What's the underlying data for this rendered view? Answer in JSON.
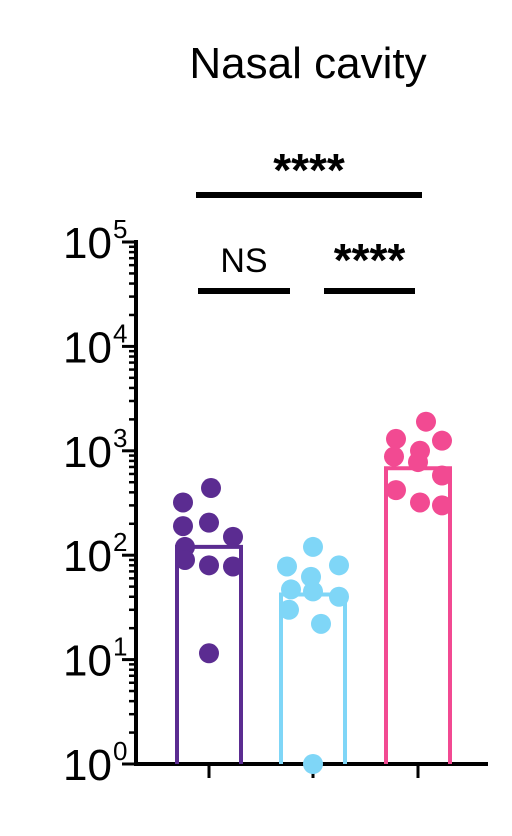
{
  "chart_data": {
    "type": "bar",
    "title": "Nasal cavity",
    "yscale": "log",
    "ylim": [
      1,
      100000
    ],
    "yticks": [
      {
        "value": 1,
        "base": "10",
        "exp": "0"
      },
      {
        "value": 10,
        "base": "10",
        "exp": "1"
      },
      {
        "value": 100,
        "base": "10",
        "exp": "2"
      },
      {
        "value": 1000,
        "base": "10",
        "exp": "3"
      },
      {
        "value": 10000,
        "base": "10",
        "exp": "4"
      },
      {
        "value": 100000,
        "base": "10",
        "exp": "5"
      }
    ],
    "xlabel": "",
    "ylabel": "",
    "categories": [
      "",
      "",
      ""
    ],
    "series": [
      {
        "color": "#5B2C91",
        "bar_value": 120,
        "points": [
          320,
          440,
          190,
          205,
          120,
          150,
          90,
          80,
          78,
          11.5
        ]
      },
      {
        "color": "#7FD6F7",
        "bar_value": 42,
        "points": [
          120,
          80,
          62,
          78,
          47,
          45,
          40,
          30,
          22,
          1
        ]
      },
      {
        "color": "#F24A92",
        "bar_value": 680,
        "points": [
          1900,
          1300,
          1000,
          1250,
          880,
          780,
          580,
          420,
          320,
          300
        ]
      }
    ],
    "significance": [
      {
        "from": 0,
        "to": 1,
        "label": "NS"
      },
      {
        "from": 1,
        "to": 2,
        "label": "****"
      },
      {
        "from": 0,
        "to": 2,
        "label": "****"
      }
    ]
  }
}
